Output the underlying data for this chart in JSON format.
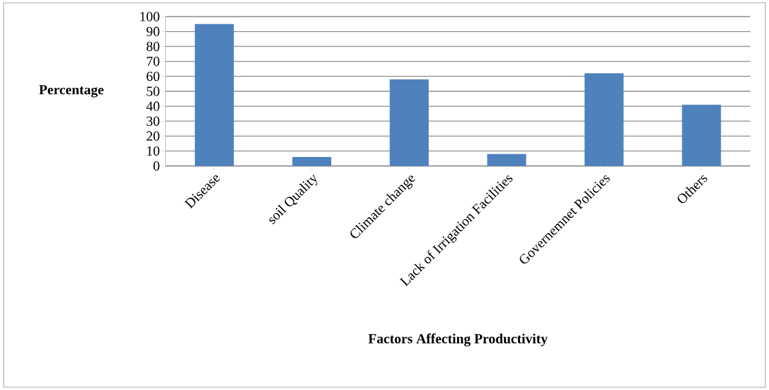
{
  "chart_data": {
    "type": "bar",
    "xlabel": "Factors Affecting Productivity",
    "ylabel": "Percentage",
    "categories": [
      "Disease",
      "soil Quality",
      "Climate change",
      "Lack of Irrigation Facilities",
      "Governemnet Policies",
      "Others"
    ],
    "values": [
      95,
      6,
      58,
      8,
      62,
      41
    ],
    "color": "#4f81bd",
    "ylim": [
      0,
      100
    ],
    "yticks": [
      0,
      10,
      20,
      30,
      40,
      50,
      60,
      70,
      80,
      90,
      100
    ],
    "grid": "y"
  }
}
